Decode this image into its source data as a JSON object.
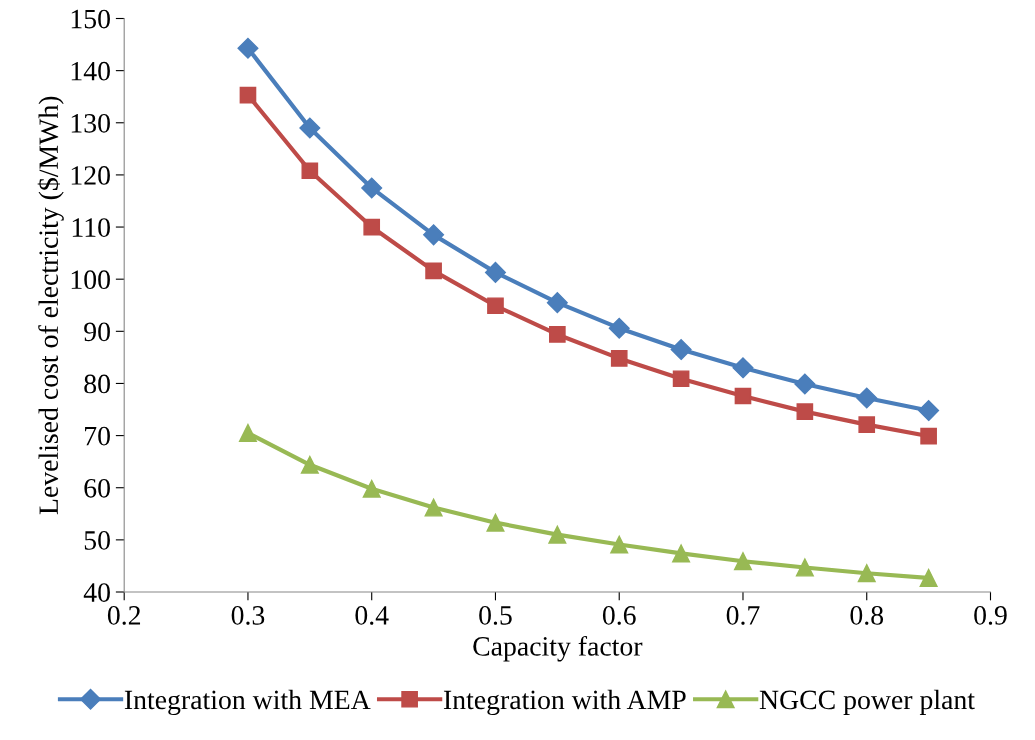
{
  "chart_data": {
    "type": "line",
    "xlabel": "Capacity factor",
    "ylabel": "Levelised cost of electricity ($/MWh)",
    "x": [
      0.3,
      0.35,
      0.4,
      0.45,
      0.5,
      0.55,
      0.6,
      0.65,
      0.7,
      0.75,
      0.8,
      0.85
    ],
    "series": [
      {
        "name": "Integration with MEA",
        "color": "#4a7ebb",
        "marker": "diamond",
        "values": [
          144.3,
          129,
          117.5,
          108.5,
          101.3,
          95.5,
          90.6,
          86.5,
          83,
          79.9,
          77.2,
          74.8
        ]
      },
      {
        "name": "Integration with AMP",
        "color": "#be4b48",
        "marker": "square",
        "values": [
          135.3,
          120.8,
          110,
          101.6,
          94.9,
          89.4,
          84.8,
          80.9,
          77.6,
          74.6,
          72.1,
          69.9
        ]
      },
      {
        "name": "NGCC power plant",
        "color": "#98b954",
        "marker": "triangle",
        "values": [
          70.5,
          64.4,
          59.8,
          56.2,
          53.3,
          51,
          49.1,
          47.4,
          45.9,
          44.7,
          43.6,
          42.7
        ]
      }
    ],
    "xlim": [
      0.2,
      0.9
    ],
    "xticks": [
      0.2,
      0.3,
      0.4,
      0.5,
      0.6,
      0.7,
      0.8,
      0.9
    ],
    "ylim": [
      40,
      150
    ],
    "yticks": [
      40,
      50,
      60,
      70,
      80,
      90,
      100,
      110,
      120,
      130,
      140,
      150
    ],
    "grid": false,
    "legend": "bottom",
    "line_style": "solid"
  }
}
